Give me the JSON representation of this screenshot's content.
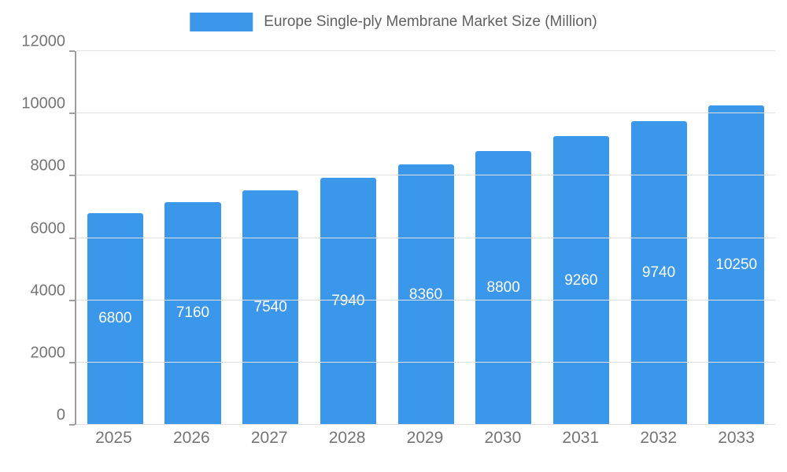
{
  "chart_data": {
    "type": "bar",
    "title": "Europe Single-ply Membrane Market Size (Million)",
    "categories": [
      "2025",
      "2026",
      "2027",
      "2028",
      "2029",
      "2030",
      "2031",
      "2032",
      "2033"
    ],
    "values": [
      6800,
      7160,
      7540,
      7940,
      8360,
      8800,
      9260,
      9740,
      10250
    ],
    "xlabel": "",
    "ylabel": "",
    "ylim": [
      0,
      12000
    ],
    "ytick_interval": 2000,
    "ytick_labels": [
      "0",
      "2000",
      "4000",
      "6000",
      "8000",
      "10000",
      "12000"
    ],
    "grid": "horizontal",
    "legend_position": "top",
    "colors": {
      "bar": "#3b97ea",
      "bar_label": "#ffffff",
      "axis_line": "#9e9e9e",
      "gridline": "#e0e0e0",
      "tick_text": "#757575",
      "legend_text": "#616161",
      "background": "#ffffff"
    }
  }
}
